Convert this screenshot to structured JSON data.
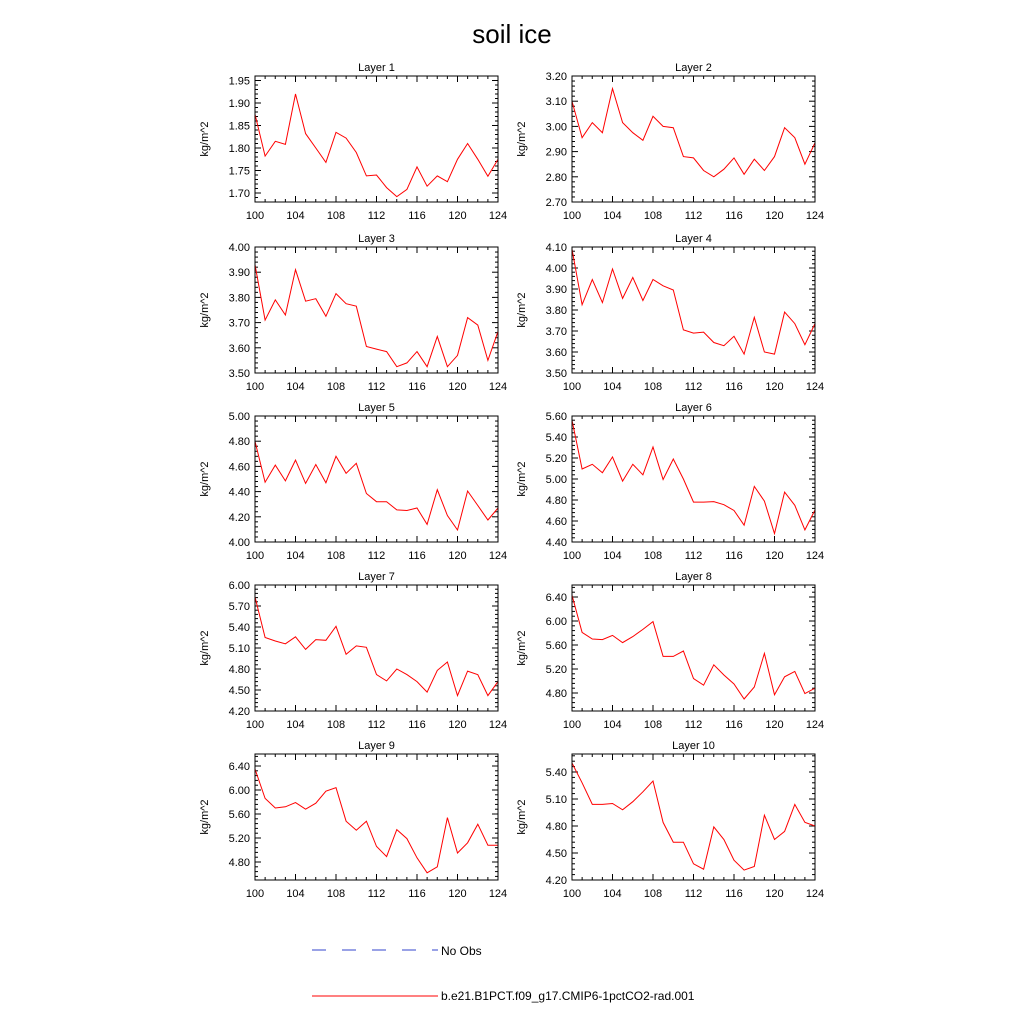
{
  "figure": {
    "title": "soil ice",
    "legend": [
      {
        "label": "No Obs",
        "color": "#3344cc",
        "style": "dashed"
      },
      {
        "label": "b.e21.B1PCT.f09_g17.CMIP6-1pctCO2-rad.001",
        "color": "#ff0000",
        "style": "solid"
      }
    ]
  },
  "chart_data": [
    {
      "type": "line",
      "title": "Layer 1",
      "xlabel": "",
      "ylabel": "kg/m^2",
      "xlim": [
        100,
        124
      ],
      "ylim": [
        1.68,
        1.96
      ],
      "xticks": [
        100,
        104,
        108,
        112,
        116,
        120,
        124
      ],
      "yticks": [
        "1.70",
        "1.75",
        "1.80",
        "1.85",
        "1.90",
        "1.95"
      ],
      "x": [
        100,
        101,
        102,
        103,
        104,
        105,
        106,
        107,
        108,
        109,
        110,
        111,
        112,
        113,
        114,
        115,
        116,
        117,
        118,
        119,
        120,
        121,
        122,
        123,
        124
      ],
      "series": [
        {
          "name": "b.e21.B1PCT.f09_g17.CMIP6-1pctCO2-rad.001",
          "color": "#ff0000",
          "values": [
            1.875,
            1.782,
            1.815,
            1.808,
            1.92,
            1.832,
            1.8,
            1.768,
            1.835,
            1.822,
            1.79,
            1.738,
            1.74,
            1.712,
            1.692,
            1.708,
            1.758,
            1.715,
            1.738,
            1.725,
            1.775,
            1.81,
            1.775,
            1.737,
            1.775
          ]
        }
      ]
    },
    {
      "type": "line",
      "title": "Layer 2",
      "xlabel": "",
      "ylabel": "kg/m^2",
      "xlim": [
        100,
        124
      ],
      "ylim": [
        2.7,
        3.2
      ],
      "xticks": [
        100,
        104,
        108,
        112,
        116,
        120,
        124
      ],
      "yticks": [
        "2.70",
        "2.80",
        "2.90",
        "3.00",
        "3.10",
        "3.20"
      ],
      "x": [
        100,
        101,
        102,
        103,
        104,
        105,
        106,
        107,
        108,
        109,
        110,
        111,
        112,
        113,
        114,
        115,
        116,
        117,
        118,
        119,
        120,
        121,
        122,
        123,
        124
      ],
      "series": [
        {
          "name": "b.e21.B1PCT.f09_g17.CMIP6-1pctCO2-rad.001",
          "color": "#ff0000",
          "values": [
            3.1,
            2.955,
            3.015,
            2.975,
            3.15,
            3.015,
            2.975,
            2.945,
            3.04,
            3.0,
            2.995,
            2.88,
            2.875,
            2.825,
            2.8,
            2.83,
            2.875,
            2.81,
            2.87,
            2.825,
            2.88,
            2.995,
            2.955,
            2.85,
            2.935
          ]
        }
      ]
    },
    {
      "type": "line",
      "title": "Layer 3",
      "xlabel": "",
      "ylabel": "kg/m^2",
      "xlim": [
        100,
        124
      ],
      "ylim": [
        3.5,
        4.0
      ],
      "xticks": [
        100,
        104,
        108,
        112,
        116,
        120,
        124
      ],
      "yticks": [
        "3.50",
        "3.60",
        "3.70",
        "3.80",
        "3.90",
        "4.00"
      ],
      "x": [
        100,
        101,
        102,
        103,
        104,
        105,
        106,
        107,
        108,
        109,
        110,
        111,
        112,
        113,
        114,
        115,
        116,
        117,
        118,
        119,
        120,
        121,
        122,
        123,
        124
      ],
      "series": [
        {
          "name": "b.e21.B1PCT.f09_g17.CMIP6-1pctCO2-rad.001",
          "color": "#ff0000",
          "values": [
            3.93,
            3.71,
            3.79,
            3.73,
            3.91,
            3.785,
            3.795,
            3.725,
            3.815,
            3.775,
            3.765,
            3.605,
            3.595,
            3.585,
            3.525,
            3.54,
            3.585,
            3.525,
            3.645,
            3.525,
            3.57,
            3.72,
            3.69,
            3.55,
            3.665
          ]
        }
      ]
    },
    {
      "type": "line",
      "title": "Layer 4",
      "xlabel": "",
      "ylabel": "kg/m^2",
      "xlim": [
        100,
        124
      ],
      "ylim": [
        3.5,
        4.1
      ],
      "xticks": [
        100,
        104,
        108,
        112,
        116,
        120,
        124
      ],
      "yticks": [
        "3.50",
        "3.60",
        "3.70",
        "3.80",
        "3.90",
        "4.00",
        "4.10"
      ],
      "x": [
        100,
        101,
        102,
        103,
        104,
        105,
        106,
        107,
        108,
        109,
        110,
        111,
        112,
        113,
        114,
        115,
        116,
        117,
        118,
        119,
        120,
        121,
        122,
        123,
        124
      ],
      "series": [
        {
          "name": "b.e21.B1PCT.f09_g17.CMIP6-1pctCO2-rad.001",
          "color": "#ff0000",
          "values": [
            4.09,
            3.825,
            3.945,
            3.835,
            3.995,
            3.855,
            3.955,
            3.845,
            3.945,
            3.915,
            3.895,
            3.705,
            3.69,
            3.695,
            3.645,
            3.63,
            3.675,
            3.59,
            3.765,
            3.6,
            3.59,
            3.79,
            3.735,
            3.635,
            3.735
          ]
        }
      ]
    },
    {
      "type": "line",
      "title": "Layer 5",
      "xlabel": "",
      "ylabel": "kg/m^2",
      "xlim": [
        100,
        124
      ],
      "ylim": [
        4.0,
        5.0
      ],
      "xticks": [
        100,
        104,
        108,
        112,
        116,
        120,
        124
      ],
      "yticks": [
        "4.00",
        "4.20",
        "4.40",
        "4.60",
        "4.80",
        "5.00"
      ],
      "x": [
        100,
        101,
        102,
        103,
        104,
        105,
        106,
        107,
        108,
        109,
        110,
        111,
        112,
        113,
        114,
        115,
        116,
        117,
        118,
        119,
        120,
        121,
        122,
        123,
        124
      ],
      "series": [
        {
          "name": "b.e21.B1PCT.f09_g17.CMIP6-1pctCO2-rad.001",
          "color": "#ff0000",
          "values": [
            4.8,
            4.475,
            4.61,
            4.485,
            4.65,
            4.465,
            4.615,
            4.47,
            4.68,
            4.545,
            4.625,
            4.385,
            4.32,
            4.32,
            4.255,
            4.25,
            4.27,
            4.14,
            4.415,
            4.21,
            4.095,
            4.405,
            4.29,
            4.175,
            4.27
          ]
        }
      ]
    },
    {
      "type": "line",
      "title": "Layer 6",
      "xlabel": "",
      "ylabel": "kg/m^2",
      "xlim": [
        100,
        124
      ],
      "ylim": [
        4.4,
        5.6
      ],
      "xticks": [
        100,
        104,
        108,
        112,
        116,
        120,
        124
      ],
      "yticks": [
        "4.40",
        "4.60",
        "4.80",
        "5.00",
        "5.20",
        "5.40",
        "5.60"
      ],
      "x": [
        100,
        101,
        102,
        103,
        104,
        105,
        106,
        107,
        108,
        109,
        110,
        111,
        112,
        113,
        114,
        115,
        116,
        117,
        118,
        119,
        120,
        121,
        122,
        123,
        124
      ],
      "series": [
        {
          "name": "b.e21.B1PCT.f09_g17.CMIP6-1pctCO2-rad.001",
          "color": "#ff0000",
          "values": [
            5.56,
            5.095,
            5.14,
            5.06,
            5.21,
            4.98,
            5.14,
            5.04,
            5.305,
            4.995,
            5.19,
            5.0,
            4.78,
            4.78,
            4.785,
            4.755,
            4.7,
            4.56,
            4.93,
            4.79,
            4.48,
            4.875,
            4.75,
            4.515,
            4.705
          ]
        }
      ]
    },
    {
      "type": "line",
      "title": "Layer 7",
      "xlabel": "",
      "ylabel": "kg/m^2",
      "xlim": [
        100,
        124
      ],
      "ylim": [
        4.2,
        6.0
      ],
      "xticks": [
        100,
        104,
        108,
        112,
        116,
        120,
        124
      ],
      "yticks": [
        "4.20",
        "4.50",
        "4.80",
        "5.10",
        "5.40",
        "5.70",
        "6.00"
      ],
      "x": [
        100,
        101,
        102,
        103,
        104,
        105,
        106,
        107,
        108,
        109,
        110,
        111,
        112,
        113,
        114,
        115,
        116,
        117,
        118,
        119,
        120,
        121,
        122,
        123,
        124
      ],
      "series": [
        {
          "name": "b.e21.B1PCT.f09_g17.CMIP6-1pctCO2-rad.001",
          "color": "#ff0000",
          "values": [
            5.83,
            5.25,
            5.2,
            5.16,
            5.26,
            5.08,
            5.22,
            5.21,
            5.41,
            5.01,
            5.13,
            5.11,
            4.72,
            4.63,
            4.8,
            4.72,
            4.62,
            4.47,
            4.78,
            4.9,
            4.42,
            4.77,
            4.72,
            4.42,
            4.62
          ]
        }
      ]
    },
    {
      "type": "line",
      "title": "Layer 8",
      "xlabel": "",
      "ylabel": "kg/m^2",
      "xlim": [
        100,
        124
      ],
      "ylim": [
        4.5,
        6.6
      ],
      "xticks": [
        100,
        104,
        108,
        112,
        116,
        120,
        124
      ],
      "yticks": [
        "4.80",
        "5.20",
        "5.60",
        "6.00",
        "6.40"
      ],
      "x": [
        100,
        101,
        102,
        103,
        104,
        105,
        106,
        107,
        108,
        109,
        110,
        111,
        112,
        113,
        114,
        115,
        116,
        117,
        118,
        119,
        120,
        121,
        122,
        123,
        124
      ],
      "series": [
        {
          "name": "b.e21.B1PCT.f09_g17.CMIP6-1pctCO2-rad.001",
          "color": "#ff0000",
          "values": [
            6.43,
            5.81,
            5.7,
            5.69,
            5.76,
            5.64,
            5.74,
            5.86,
            5.99,
            5.41,
            5.41,
            5.5,
            5.04,
            4.93,
            5.27,
            5.1,
            4.95,
            4.7,
            4.9,
            5.46,
            4.77,
            5.07,
            5.16,
            4.79,
            4.88
          ]
        }
      ]
    },
    {
      "type": "line",
      "title": "Layer 9",
      "xlabel": "",
      "ylabel": "kg/m^2",
      "xlim": [
        100,
        124
      ],
      "ylim": [
        4.5,
        6.6
      ],
      "xticks": [
        100,
        104,
        108,
        112,
        116,
        120,
        124
      ],
      "yticks": [
        "4.80",
        "5.20",
        "5.60",
        "6.00",
        "6.40"
      ],
      "x": [
        100,
        101,
        102,
        103,
        104,
        105,
        106,
        107,
        108,
        109,
        110,
        111,
        112,
        113,
        114,
        115,
        116,
        117,
        118,
        119,
        120,
        121,
        122,
        123,
        124
      ],
      "series": [
        {
          "name": "b.e21.B1PCT.f09_g17.CMIP6-1pctCO2-rad.001",
          "color": "#ff0000",
          "values": [
            6.35,
            5.86,
            5.7,
            5.72,
            5.79,
            5.68,
            5.78,
            5.98,
            6.04,
            5.48,
            5.33,
            5.48,
            5.06,
            4.89,
            5.34,
            5.19,
            4.87,
            4.62,
            4.72,
            5.54,
            4.95,
            5.12,
            5.43,
            5.08,
            5.08
          ]
        }
      ]
    },
    {
      "type": "line",
      "title": "Layer 10",
      "xlabel": "",
      "ylabel": "kg/m^2",
      "xlim": [
        100,
        124
      ],
      "ylim": [
        4.2,
        5.6
      ],
      "xticks": [
        100,
        104,
        108,
        112,
        116,
        120,
        124
      ],
      "yticks": [
        "4.20",
        "4.50",
        "4.80",
        "5.10",
        "5.40"
      ],
      "x": [
        100,
        101,
        102,
        103,
        104,
        105,
        106,
        107,
        108,
        109,
        110,
        111,
        112,
        113,
        114,
        115,
        116,
        117,
        118,
        119,
        120,
        121,
        122,
        123,
        124
      ],
      "series": [
        {
          "name": "b.e21.B1PCT.f09_g17.CMIP6-1pctCO2-rad.001",
          "color": "#ff0000",
          "values": [
            5.5,
            5.28,
            5.04,
            5.04,
            5.05,
            4.98,
            5.07,
            5.18,
            5.3,
            4.84,
            4.62,
            4.62,
            4.38,
            4.32,
            4.79,
            4.65,
            4.42,
            4.31,
            4.35,
            4.92,
            4.65,
            4.74,
            5.04,
            4.84,
            4.8
          ]
        }
      ]
    }
  ]
}
